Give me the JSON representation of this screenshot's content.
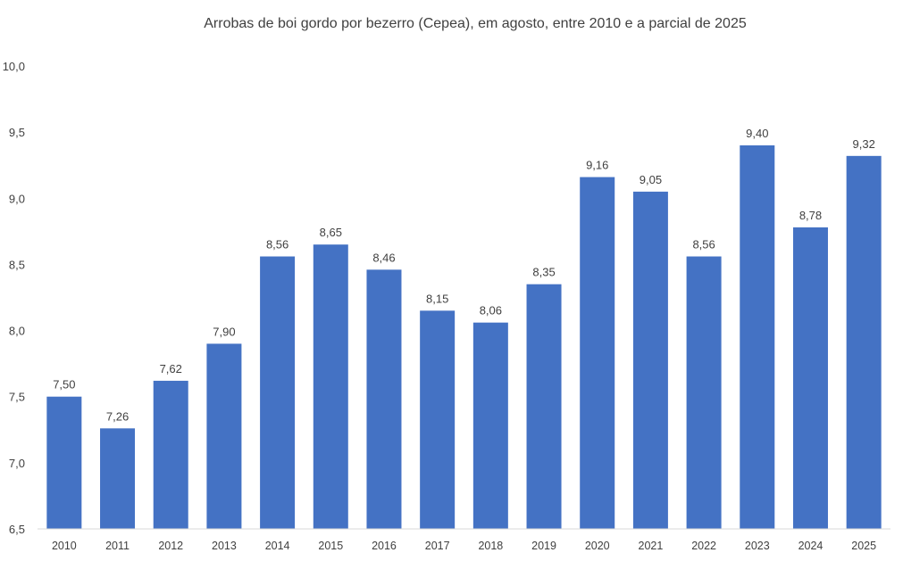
{
  "chart_data": {
    "type": "bar",
    "title": "Arrobas de boi gordo por bezerro (Cepea), em agosto, entre 2010 e a parcial de 2025",
    "xlabel": "",
    "ylabel": "",
    "categories": [
      "2010",
      "2011",
      "2012",
      "2013",
      "2014",
      "2015",
      "2016",
      "2017",
      "2018",
      "2019",
      "2020",
      "2021",
      "2022",
      "2023",
      "2024",
      "2025"
    ],
    "values": [
      7.5,
      7.26,
      7.62,
      7.9,
      8.56,
      8.65,
      8.46,
      8.15,
      8.06,
      8.35,
      9.16,
      9.05,
      8.56,
      9.4,
      8.78,
      9.32
    ],
    "data_labels": [
      "7,50",
      "7,26",
      "7,62",
      "7,90",
      "8,56",
      "8,65",
      "8,46",
      "8,15",
      "8,06",
      "8,35",
      "9,16",
      "9,05",
      "8,56",
      "9,40",
      "8,78",
      "9,32"
    ],
    "ylim": [
      6.5,
      10.0
    ],
    "yticks": [
      6.5,
      7.0,
      7.5,
      8.0,
      8.5,
      9.0,
      9.5,
      10.0
    ],
    "ytick_labels": [
      "6,5",
      "7,0",
      "7,5",
      "8,0",
      "8,5",
      "9,0",
      "9,5",
      "10,0"
    ],
    "grid": false,
    "legend": "none",
    "bar_color": "#4472C4"
  }
}
